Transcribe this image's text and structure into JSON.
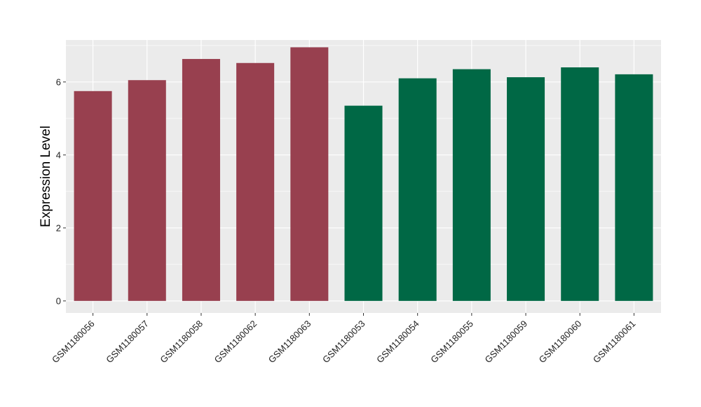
{
  "chart_data": {
    "type": "bar",
    "title": "",
    "xlabel": "",
    "ylabel": "Expression Level",
    "ylim": [
      -0.33,
      7.15
    ],
    "yticks": [
      0,
      2,
      4,
      6
    ],
    "grid": true,
    "categories": [
      "GSM1180056",
      "GSM1180057",
      "GSM1180058",
      "GSM1180062",
      "GSM1180063",
      "GSM1180053",
      "GSM1180054",
      "GSM1180055",
      "GSM1180059",
      "GSM1180060",
      "GSM1180061"
    ],
    "values": [
      5.75,
      6.05,
      6.63,
      6.52,
      6.95,
      5.35,
      6.1,
      6.35,
      6.13,
      6.4,
      6.21
    ],
    "colors": [
      "#98404F",
      "#98404F",
      "#98404F",
      "#98404F",
      "#98404F",
      "#006845",
      "#006845",
      "#006845",
      "#006845",
      "#006845",
      "#006845"
    ],
    "panel_color": "#EBEBEB",
    "grid_color": "#FFFFFF"
  }
}
